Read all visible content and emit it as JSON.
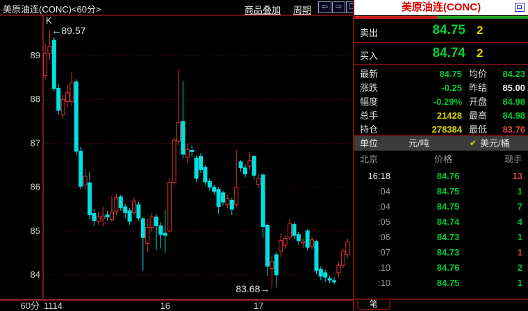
{
  "top_bar": {
    "title": "美原油连(CONC)<60分>",
    "overlay_link": "商品叠加",
    "period_link": "周期",
    "icons": [
      {
        "name": "arrow-left-icon",
        "glyph": "⇦"
      },
      {
        "name": "arrow-right-icon",
        "glyph": "⇨"
      },
      {
        "name": "window-layout-icon",
        "glyph": "❐"
      }
    ]
  },
  "panel": {
    "title": "美原油连(CONC)",
    "strength_bar": {
      "red_pct": 48,
      "green_pct": 52,
      "red_color": "#cf2020",
      "green_color": "#1fa51f"
    },
    "sell": {
      "label": "卖出",
      "price": "84.75",
      "lots": "2"
    },
    "buy": {
      "label": "买入",
      "price": "84.74",
      "lots": "2"
    },
    "info_rows": [
      {
        "l1": "最新",
        "v1": "84.75",
        "c1": "green",
        "l2": "均价",
        "v2": "84.23",
        "c2": "green"
      },
      {
        "l1": "涨跌",
        "v1": "-0.25",
        "c1": "green",
        "l2": "昨结",
        "v2": "85.00",
        "c2": "white"
      },
      {
        "l1": "幅度",
        "v1": "-0.29%",
        "c1": "green",
        "l2": "开盘",
        "v2": "84.98",
        "c2": "green"
      },
      {
        "l1": "总手",
        "v1": "21428",
        "c1": "yellow",
        "l2": "最高",
        "v2": "84.98",
        "c2": "green"
      },
      {
        "l1": "持仓",
        "v1": "278384",
        "c1": "yellow",
        "l2": "最低",
        "v2": "83.76",
        "c2": "red"
      }
    ],
    "unit_row": {
      "label": "单位",
      "option1": "元/吨",
      "check": "✔",
      "option2": "美元/桶"
    },
    "trade_header": {
      "col1": "北京",
      "col2": "价格",
      "col3": "现手"
    },
    "trades": [
      {
        "time": "16:18",
        "price": "84.76",
        "price_color": "green",
        "lots": "13",
        "lots_color": "red"
      },
      {
        "time": ":04",
        "price": "84.75",
        "price_color": "green",
        "lots": "1",
        "lots_color": "green"
      },
      {
        "time": ":04",
        "price": "84.75",
        "price_color": "green",
        "lots": "7",
        "lots_color": "green"
      },
      {
        "time": ":05",
        "price": "84.74",
        "price_color": "green",
        "lots": "4",
        "lots_color": "green"
      },
      {
        "time": ":06",
        "price": "84.73",
        "price_color": "green",
        "lots": "1",
        "lots_color": "green"
      },
      {
        "time": ":07",
        "price": "84.73",
        "price_color": "green",
        "lots": "1",
        "lots_color": "red"
      },
      {
        "time": ":10",
        "price": "84.76",
        "price_color": "green",
        "lots": "2",
        "lots_color": "green"
      },
      {
        "time": ":10",
        "price": "84.75",
        "price_color": "green",
        "lots": "1",
        "lots_color": "green"
      }
    ],
    "tab": "笔"
  },
  "chart_data": {
    "type": "candlestick",
    "period_label": "60分",
    "corner_label": "K",
    "y_ticks": [
      89,
      88,
      87,
      86,
      85,
      84
    ],
    "x_ticks": [
      {
        "index": 0,
        "label": "1114",
        "align": "start"
      },
      {
        "index": 27,
        "label": "16",
        "align": "middle"
      },
      {
        "index": 48,
        "label": "17",
        "align": "middle"
      }
    ],
    "high_annotation": {
      "text": "89.57",
      "candle": 1
    },
    "low_annotation": {
      "text": "83.68",
      "candle": 51
    },
    "up_color": "#e83434",
    "down_color": "#00e0e0",
    "grid_color": "#5c1414",
    "axis_color": "#9b2727",
    "candles_ohlc": [
      [
        88.55,
        89.27,
        88.45,
        89.05
      ],
      [
        89.05,
        89.57,
        88.9,
        89.2
      ],
      [
        89.35,
        89.42,
        88.18,
        88.25
      ],
      [
        88.25,
        88.35,
        87.65,
        87.75
      ],
      [
        87.65,
        88.1,
        87.55,
        88.0
      ],
      [
        87.95,
        88.32,
        87.82,
        88.15
      ],
      [
        87.95,
        88.62,
        87.85,
        88.38
      ],
      [
        88.4,
        88.46,
        86.72,
        86.82
      ],
      [
        86.82,
        86.92,
        85.95,
        86.02
      ],
      [
        86.05,
        86.42,
        85.95,
        86.25
      ],
      [
        86.1,
        86.36,
        85.26,
        85.37
      ],
      [
        85.4,
        85.5,
        85.12,
        85.24
      ],
      [
        85.22,
        85.44,
        85.14,
        85.32
      ],
      [
        85.28,
        85.56,
        85.1,
        85.34
      ],
      [
        85.37,
        85.46,
        85.24,
        85.32
      ],
      [
        85.26,
        85.8,
        85.2,
        85.43
      ],
      [
        85.44,
        85.86,
        85.36,
        85.76
      ],
      [
        85.78,
        85.82,
        85.46,
        85.53
      ],
      [
        85.55,
        85.62,
        85.3,
        85.42
      ],
      [
        85.46,
        85.52,
        85.14,
        85.22
      ],
      [
        85.42,
        85.76,
        85.36,
        85.68
      ],
      [
        85.6,
        85.66,
        85.24,
        85.3
      ],
      [
        85.28,
        85.32,
        84.1,
        84.85
      ],
      [
        84.72,
        85.28,
        84.52,
        85.08
      ],
      [
        85.08,
        85.4,
        84.98,
        85.32
      ],
      [
        85.32,
        85.38,
        84.57,
        85.12
      ],
      [
        85.12,
        85.2,
        84.6,
        84.92
      ],
      [
        84.95,
        85.48,
        84.5,
        84.9
      ],
      [
        85.0,
        86.2,
        84.95,
        86.11
      ],
      [
        86.11,
        87.15,
        86.05,
        87.07
      ],
      [
        87.05,
        88.68,
        86.95,
        87.47
      ],
      [
        87.5,
        88.43,
        86.65,
        86.75
      ],
      [
        86.67,
        87.0,
        86.55,
        86.86
      ],
      [
        86.84,
        86.95,
        86.7,
        86.81
      ],
      [
        86.66,
        86.72,
        86.12,
        86.2
      ],
      [
        86.7,
        86.78,
        86.32,
        86.4
      ],
      [
        86.45,
        86.5,
        86.05,
        86.12
      ],
      [
        86.13,
        86.2,
        85.92,
        86.0
      ],
      [
        86.0,
        86.06,
        85.82,
        85.9
      ],
      [
        85.95,
        86.0,
        85.4,
        85.56
      ],
      [
        85.87,
        85.92,
        85.58,
        85.66
      ],
      [
        85.6,
        85.82,
        85.52,
        85.74
      ],
      [
        85.7,
        85.76,
        85.36,
        85.5
      ],
      [
        85.6,
        86.85,
        85.55,
        86.0
      ],
      [
        86.58,
        86.62,
        86.35,
        86.44
      ],
      [
        86.44,
        86.52,
        86.22,
        86.3
      ],
      [
        86.48,
        86.8,
        86.4,
        86.6
      ],
      [
        86.7,
        86.74,
        86.18,
        86.27
      ],
      [
        86.06,
        86.3,
        85.98,
        86.2
      ],
      [
        86.28,
        86.32,
        84.84,
        85.1
      ],
      [
        85.13,
        85.18,
        83.98,
        84.2
      ],
      [
        84.15,
        84.45,
        83.68,
        84.3
      ],
      [
        84.46,
        84.52,
        83.72,
        84.0
      ],
      [
        84.54,
        84.94,
        84.4,
        84.78
      ],
      [
        84.68,
        84.9,
        84.6,
        84.83
      ],
      [
        84.86,
        85.28,
        84.8,
        85.17
      ],
      [
        85.15,
        85.2,
        84.82,
        84.9
      ],
      [
        84.92,
        84.98,
        84.7,
        84.78
      ],
      [
        84.73,
        84.84,
        84.62,
        84.76
      ],
      [
        85.0,
        85.04,
        84.56,
        84.63
      ],
      [
        84.65,
        84.88,
        84.58,
        84.8
      ],
      [
        84.76,
        84.8,
        84.02,
        84.1
      ],
      [
        84.13,
        84.2,
        83.88,
        83.97
      ],
      [
        84.05,
        84.12,
        83.84,
        83.95
      ],
      [
        83.92,
        83.98,
        83.8,
        83.88
      ],
      [
        83.87,
        83.95,
        83.78,
        83.84
      ],
      [
        84.05,
        84.3,
        83.95,
        84.22
      ],
      [
        84.22,
        84.6,
        84.15,
        84.54
      ],
      [
        84.46,
        84.83,
        84.38,
        84.75
      ]
    ]
  }
}
